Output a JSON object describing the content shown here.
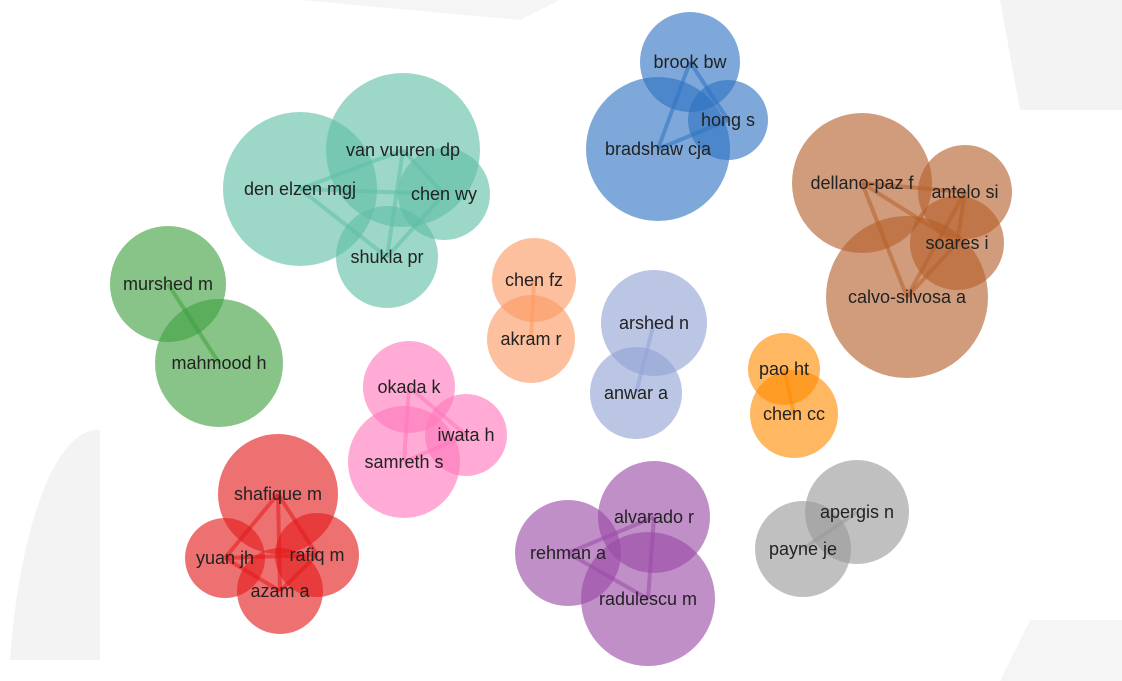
{
  "clusters": [
    {
      "id": "teal",
      "color": "#5fbfa7",
      "nodes": [
        {
          "id": "van-vuuren-dp",
          "label": "van vuuren dp"
        },
        {
          "id": "den-elzen-mgj",
          "label": "den elzen mgj"
        },
        {
          "id": "chen-wy",
          "label": "chen wy"
        },
        {
          "id": "shukla-pr",
          "label": "shukla pr"
        }
      ]
    },
    {
      "id": "green",
      "color": "#3f9f3f",
      "nodes": [
        {
          "id": "murshed-m",
          "label": "murshed m"
        },
        {
          "id": "mahmood-h",
          "label": "mahmood h"
        }
      ]
    },
    {
      "id": "blue",
      "color": "#2f73c2",
      "nodes": [
        {
          "id": "brook-bw",
          "label": "brook bw"
        },
        {
          "id": "hong-s",
          "label": "hong s"
        },
        {
          "id": "bradshaw-cja",
          "label": "bradshaw cja"
        }
      ]
    },
    {
      "id": "brown",
      "color": "#b5602a",
      "nodes": [
        {
          "id": "dellano-paz-f",
          "label": "dellano-paz f"
        },
        {
          "id": "antelo-si",
          "label": "antelo si"
        },
        {
          "id": "soares-i",
          "label": "soares i"
        },
        {
          "id": "calvo-silvosa-a",
          "label": "calvo-silvosa a"
        }
      ]
    },
    {
      "id": "salmon",
      "color": "#fb9a63",
      "nodes": [
        {
          "id": "chen-fz",
          "label": "chen fz"
        },
        {
          "id": "akram-r",
          "label": "akram r"
        }
      ]
    },
    {
      "id": "lavender",
      "color": "#8fa3d3",
      "nodes": [
        {
          "id": "arshed-n",
          "label": "arshed n"
        },
        {
          "id": "anwar-a",
          "label": "anwar a"
        }
      ]
    },
    {
      "id": "orange",
      "color": "#ff8a00",
      "nodes": [
        {
          "id": "pao-ht",
          "label": "pao ht"
        },
        {
          "id": "chen-cc",
          "label": "chen cc"
        }
      ]
    },
    {
      "id": "pink",
      "color": "#ff77bb",
      "nodes": [
        {
          "id": "okada-k",
          "label": "okada k"
        },
        {
          "id": "iwata-h",
          "label": "iwata h"
        },
        {
          "id": "samreth-s",
          "label": "samreth s"
        }
      ]
    },
    {
      "id": "red",
      "color": "#e41a1c",
      "nodes": [
        {
          "id": "shafique-m",
          "label": "shafique m"
        },
        {
          "id": "yuan-jh",
          "label": "yuan jh"
        },
        {
          "id": "rafiq-m",
          "label": "rafiq m"
        },
        {
          "id": "azam-a",
          "label": "azam a"
        }
      ]
    },
    {
      "id": "purple",
      "color": "#9a4aa6",
      "nodes": [
        {
          "id": "alvarado-r",
          "label": "alvarado r"
        },
        {
          "id": "rehman-a",
          "label": "rehman a"
        },
        {
          "id": "radulescu-m",
          "label": "radulescu m"
        }
      ]
    },
    {
      "id": "gray",
      "color": "#999999",
      "nodes": [
        {
          "id": "apergis-n",
          "label": "apergis n"
        },
        {
          "id": "payne-je",
          "label": "payne je"
        }
      ]
    }
  ]
}
